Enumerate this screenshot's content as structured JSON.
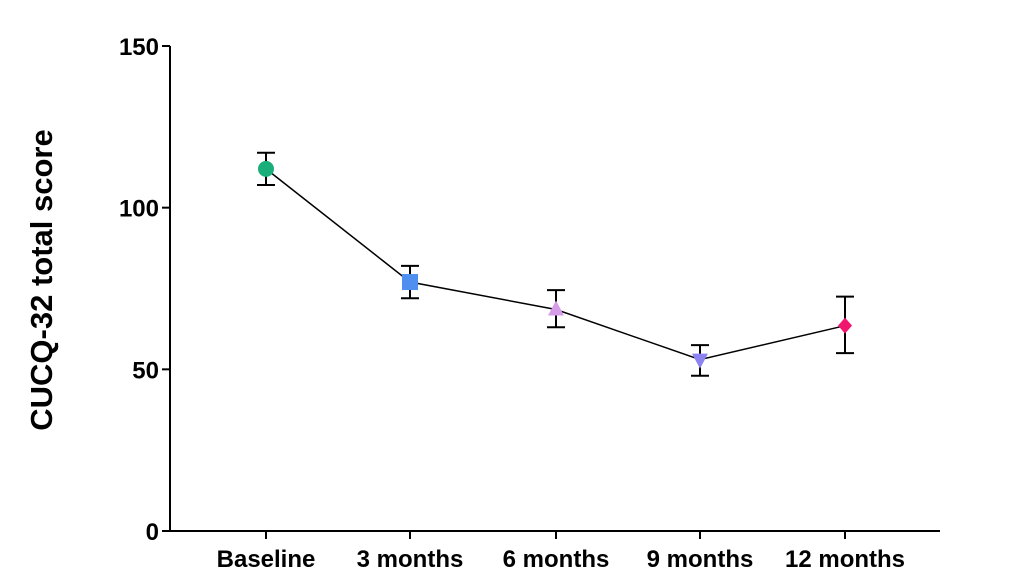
{
  "chart_data": {
    "type": "line",
    "title": "",
    "xlabel": "",
    "ylabel": "CUCQ-32 total score",
    "categories": [
      "Baseline",
      "3 months",
      "6 months",
      "9 months",
      "12 months"
    ],
    "values": [
      112,
      77,
      68.5,
      53,
      63.5
    ],
    "error_upper": [
      117,
      82,
      74.5,
      57.5,
      72.5
    ],
    "error_lower": [
      107,
      72,
      63,
      48,
      55
    ],
    "markers": [
      "circle",
      "square",
      "triangle-up",
      "triangle-down",
      "diamond"
    ],
    "marker_colors": [
      "#1aaf7a",
      "#4f8ff0",
      "#d59ce8",
      "#8c82f0",
      "#f0166e"
    ],
    "ylim": [
      0,
      150
    ],
    "yticks": [
      0,
      50,
      100,
      150
    ],
    "grid": false,
    "legend": "none"
  }
}
